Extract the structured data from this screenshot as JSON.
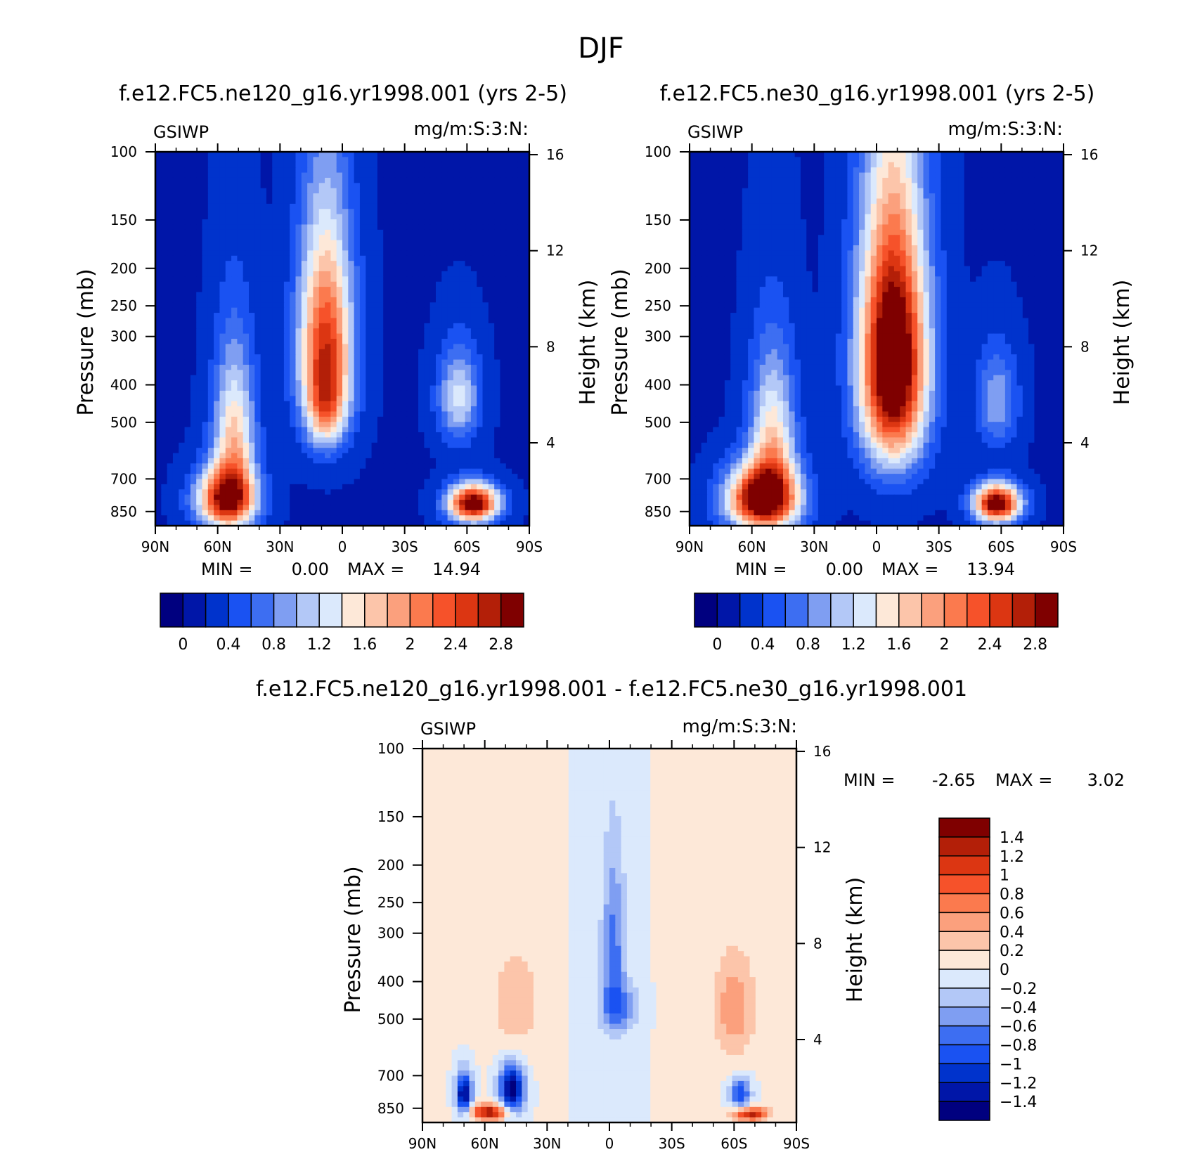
{
  "figure_title": "DJF",
  "chart_data": [
    {
      "id": "panel_ne120",
      "type": "heatmap",
      "title": "f.e12.FC5.ne120_g16.yr1998.001 (yrs 2-5)",
      "variable": "GSIWP",
      "units": "mg/m:S:3:N:",
      "xlabel": "",
      "ylabel": "Pressure (mb)",
      "y2label": "Height (km)",
      "x_ticks": [
        "90N",
        "60N",
        "30N",
        "0",
        "30S",
        "60S",
        "90S"
      ],
      "y_ticks": [
        100,
        150,
        200,
        250,
        300,
        400,
        500,
        700,
        850
      ],
      "y2_ticks": [
        4,
        8,
        12,
        16
      ],
      "x_range": [
        90,
        -90
      ],
      "y_range": [
        100,
        925
      ],
      "stats": {
        "min_label": "MIN =",
        "min": "0.00",
        "max_label": "MAX =",
        "max": "14.94"
      },
      "colorbar": {
        "orientation": "horizontal",
        "colors": [
          "#00007f",
          "#0016a8",
          "#0033cc",
          "#1a52f2",
          "#3d6ef2",
          "#7f9ef2",
          "#b3c8f7",
          "#dbe9fc",
          "#fde8d8",
          "#fcc5aa",
          "#fba07d",
          "#fb7a4e",
          "#f6522a",
          "#dc3612",
          "#b31f08",
          "#7f0000"
        ],
        "labels": [
          "0",
          "0.4",
          "0.8",
          "1.2",
          "1.6",
          "2",
          "2.4",
          "2.8"
        ]
      },
      "blobs": [
        {
          "lat": 8,
          "p": 320,
          "rlat": 13,
          "rp": 200,
          "v": 2.3
        },
        {
          "lat": 8,
          "p": 460,
          "rlat": 9,
          "rp": 110,
          "v": 0.9
        },
        {
          "lat": 52,
          "p": 560,
          "rlat": 10,
          "rp": 270,
          "v": 1.5
        },
        {
          "lat": 56,
          "p": 790,
          "rlat": 14,
          "rp": 140,
          "v": 2.5
        },
        {
          "lat": -56,
          "p": 430,
          "rlat": 10,
          "rp": 120,
          "v": 1.1
        },
        {
          "lat": -63,
          "p": 810,
          "rlat": 12,
          "rp": 90,
          "v": 3.0
        }
      ]
    },
    {
      "id": "panel_ne30",
      "type": "heatmap",
      "title": "f.e12.FC5.ne30_g16.yr1998.001 (yrs 2-5)",
      "variable": "GSIWP",
      "units": "mg/m:S:3:N:",
      "xlabel": "",
      "ylabel": "Pressure (mb)",
      "y2label": "Height (km)",
      "x_ticks": [
        "90N",
        "60N",
        "30N",
        "0",
        "30S",
        "60S",
        "90S"
      ],
      "y_ticks": [
        100,
        150,
        200,
        250,
        300,
        400,
        500,
        700,
        850
      ],
      "y2_ticks": [
        4,
        8,
        12,
        16
      ],
      "x_range": [
        90,
        -90
      ],
      "y_range": [
        100,
        925
      ],
      "stats": {
        "min_label": "MIN =",
        "min": "0.00",
        "max_label": "MAX =",
        "max": "13.94"
      },
      "colorbar": {
        "orientation": "horizontal",
        "colors": [
          "#00007f",
          "#0016a8",
          "#0033cc",
          "#1a52f2",
          "#3d6ef2",
          "#7f9ef2",
          "#b3c8f7",
          "#dbe9fc",
          "#fde8d8",
          "#fcc5aa",
          "#fba07d",
          "#fb7a4e",
          "#f6522a",
          "#dc3612",
          "#b31f08",
          "#7f0000"
        ],
        "labels": [
          "0",
          "0.4",
          "0.8",
          "1.2",
          "1.6",
          "2",
          "2.4",
          "2.8"
        ]
      },
      "blobs": [
        {
          "lat": -8,
          "p": 350,
          "rlat": 16,
          "rp": 260,
          "v": 3.4
        },
        {
          "lat": 50,
          "p": 560,
          "rlat": 11,
          "rp": 260,
          "v": 1.4
        },
        {
          "lat": 55,
          "p": 790,
          "rlat": 17,
          "rp": 150,
          "v": 3.0
        },
        {
          "lat": -58,
          "p": 440,
          "rlat": 10,
          "rp": 130,
          "v": 0.8
        },
        {
          "lat": -58,
          "p": 810,
          "rlat": 11,
          "rp": 90,
          "v": 3.0
        }
      ]
    },
    {
      "id": "panel_diff",
      "type": "heatmap",
      "title": "f.e12.FC5.ne120_g16.yr1998.001 - f.e12.FC5.ne30_g16.yr1998.001",
      "variable": "GSIWP",
      "units": "mg/m:S:3:N:",
      "xlabel": "",
      "ylabel": "Pressure (mb)",
      "y2label": "Height (km)",
      "x_ticks": [
        "90N",
        "60N",
        "30N",
        "0",
        "30S",
        "60S",
        "90S"
      ],
      "y_ticks": [
        100,
        150,
        200,
        250,
        300,
        400,
        500,
        700,
        850
      ],
      "y2_ticks": [
        4,
        8,
        12,
        16
      ],
      "x_range": [
        90,
        -90
      ],
      "y_range": [
        100,
        925
      ],
      "stats": {
        "min_label": "MIN =",
        "min": "-2.65",
        "max_label": "MAX =",
        "max": "3.02"
      },
      "colorbar": {
        "orientation": "vertical",
        "colors": [
          "#00007f",
          "#0016a8",
          "#0033cc",
          "#1a52f2",
          "#3d6ef2",
          "#7f9ef2",
          "#b3c8f7",
          "#dbe9fc",
          "#fde8d8",
          "#fcc5aa",
          "#fba07d",
          "#fb7a4e",
          "#f6522a",
          "#dc3612",
          "#b31f08",
          "#7f0000"
        ],
        "labels": [
          "1.4",
          "1.2",
          "1",
          "0.8",
          "0.6",
          "0.4",
          "0.2",
          "0",
          "-0.2",
          "-0.4",
          "-0.6",
          "-0.8",
          "-1",
          "-1.2",
          "-1.4"
        ]
      },
      "blobs": [
        {
          "lat": -2,
          "p": 330,
          "rlat": 6,
          "rp": 180,
          "v": -0.7
        },
        {
          "lat": -5,
          "p": 470,
          "rlat": 10,
          "rp": 70,
          "v": -0.6
        },
        {
          "lat": 45,
          "p": 460,
          "rlat": 12,
          "rp": 140,
          "v": 0.35
        },
        {
          "lat": -60,
          "p": 470,
          "rlat": 10,
          "rp": 140,
          "v": 0.55
        },
        {
          "lat": 70,
          "p": 780,
          "rlat": 4,
          "rp": 100,
          "v": -1.5
        },
        {
          "lat": 47,
          "p": 760,
          "rlat": 6,
          "rp": 110,
          "v": -1.6
        },
        {
          "lat": 58,
          "p": 870,
          "rlat": 9,
          "rp": 40,
          "v": 1.4
        },
        {
          "lat": -63,
          "p": 780,
          "rlat": 5,
          "rp": 70,
          "v": -1.0
        },
        {
          "lat": -68,
          "p": 880,
          "rlat": 8,
          "rp": 35,
          "v": 1.3
        }
      ]
    }
  ]
}
